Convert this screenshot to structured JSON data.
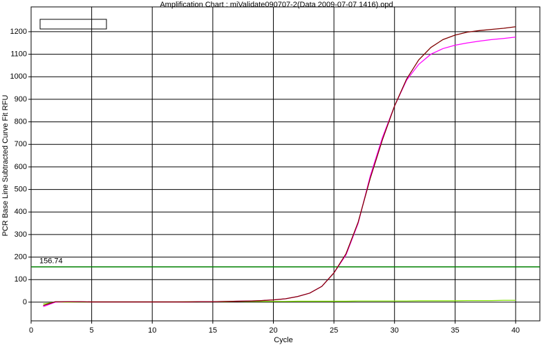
{
  "chart_data": {
    "type": "line",
    "title": "Amplification Chart : miValidate090707-2(Data 2009-07-07 1416).opd",
    "x_label": "Cycle",
    "y_label": "PCR Base Line Subtracted Curve Fit RFU",
    "x": [
      1,
      2,
      3,
      4,
      5,
      6,
      7,
      8,
      9,
      10,
      11,
      12,
      13,
      14,
      15,
      16,
      17,
      18,
      19,
      20,
      21,
      22,
      23,
      24,
      25,
      26,
      27,
      28,
      29,
      30,
      31,
      32,
      33,
      34,
      35,
      36,
      37,
      38,
      39,
      40
    ],
    "series": [
      {
        "color": "#800000",
        "values": [
          -15,
          2,
          2,
          2,
          1,
          1,
          1,
          1,
          1,
          1,
          1,
          1,
          1,
          2,
          2,
          3,
          4,
          5,
          7,
          10,
          15,
          25,
          40,
          70,
          130,
          215,
          355,
          550,
          720,
          870,
          990,
          1075,
          1130,
          1165,
          1185,
          1198,
          1205,
          1210,
          1215,
          1222
        ]
      },
      {
        "color": "#ff00ff",
        "values": [
          -20,
          0,
          2,
          2,
          1,
          1,
          1,
          1,
          1,
          1,
          1,
          1,
          1,
          2,
          2,
          3,
          4,
          5,
          7,
          10,
          15,
          25,
          40,
          70,
          130,
          210,
          350,
          560,
          730,
          870,
          985,
          1055,
          1100,
          1125,
          1140,
          1150,
          1158,
          1165,
          1170,
          1176
        ]
      },
      {
        "color": "#7fdf00",
        "values": [
          -8,
          0,
          0,
          1,
          1,
          1,
          1,
          1,
          1,
          1,
          1,
          1,
          2,
          2,
          2,
          2,
          3,
          3,
          3,
          3,
          3,
          4,
          4,
          4,
          4,
          4,
          5,
          5,
          5,
          5,
          5,
          6,
          6,
          6,
          6,
          7,
          7,
          7,
          8,
          8
        ]
      }
    ],
    "threshold": 156.74,
    "threshold_color": "#008000",
    "xlim": [
      0,
      42
    ],
    "ylim": [
      -83,
      1310
    ],
    "xticks": [
      0,
      5,
      10,
      15,
      20,
      25,
      30,
      35,
      40
    ],
    "yticks": [
      0,
      100,
      200,
      300,
      400,
      500,
      600,
      700,
      800,
      900,
      1000,
      1100,
      1200
    ],
    "grid": true
  }
}
